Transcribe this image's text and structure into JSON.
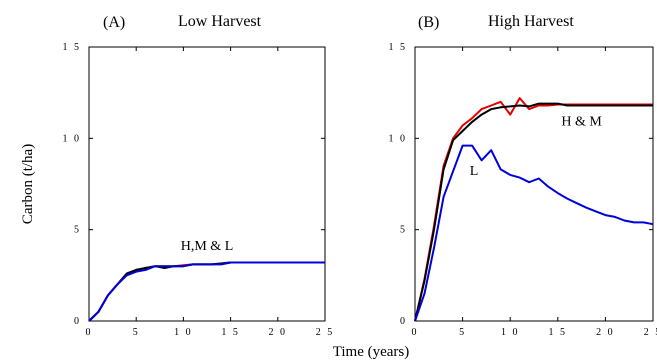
{
  "xlabel": "Time (years)",
  "ylabel": "Carbon (t/ha)",
  "chart_data": [
    {
      "type": "line",
      "panel_label": "(A)",
      "title": "Low Harvest",
      "xlim": [
        0,
        25
      ],
      "ylim": [
        0,
        15
      ],
      "xticks": [
        0,
        5,
        10,
        15,
        20,
        25
      ],
      "xtick_labels": [
        "0",
        "5",
        "1 0",
        "1 5",
        "2 0",
        "2 5"
      ],
      "yticks": [
        0,
        5,
        10,
        15
      ],
      "ytick_labels": [
        "0",
        "5",
        "1 0",
        "1 5"
      ],
      "grid": false,
      "annotations": [
        {
          "text": "H,M & L",
          "x": 12.5,
          "y": 3.9
        }
      ],
      "series": [
        {
          "color": "#e00000",
          "x": [
            0,
            1,
            2,
            3,
            4,
            5,
            6,
            7,
            8,
            9,
            10,
            11,
            12,
            13,
            14,
            15,
            16,
            17,
            18,
            19,
            20,
            21,
            22,
            23,
            24,
            25
          ],
          "y": [
            0,
            0.5,
            1.4,
            2.0,
            2.6,
            2.8,
            2.9,
            3.0,
            3.0,
            3.0,
            3.05,
            3.1,
            3.1,
            3.1,
            3.15,
            3.2,
            3.2,
            3.2,
            3.2,
            3.2,
            3.2,
            3.2,
            3.2,
            3.2,
            3.2,
            3.2
          ]
        },
        {
          "color": "#000000",
          "x": [
            0,
            1,
            2,
            3,
            4,
            5,
            6,
            7,
            8,
            9,
            10,
            11,
            12,
            13,
            14,
            15,
            16,
            17,
            18,
            19,
            20,
            21,
            22,
            23,
            24,
            25
          ],
          "y": [
            0,
            0.5,
            1.4,
            2.0,
            2.6,
            2.8,
            2.9,
            3.0,
            2.9,
            3.0,
            3.0,
            3.1,
            3.1,
            3.1,
            3.15,
            3.2,
            3.2,
            3.2,
            3.2,
            3.2,
            3.2,
            3.2,
            3.2,
            3.2,
            3.2,
            3.2
          ]
        },
        {
          "color": "#0000dd",
          "x": [
            0,
            1,
            2,
            3,
            4,
            5,
            6,
            7,
            8,
            9,
            10,
            11,
            12,
            13,
            14,
            15,
            16,
            17,
            18,
            19,
            20,
            21,
            22,
            23,
            24,
            25
          ],
          "y": [
            0,
            0.5,
            1.4,
            2.0,
            2.5,
            2.7,
            2.8,
            3.0,
            3.0,
            3.0,
            3.0,
            3.1,
            3.1,
            3.1,
            3.1,
            3.2,
            3.2,
            3.2,
            3.2,
            3.2,
            3.2,
            3.2,
            3.2,
            3.2,
            3.2,
            3.2
          ]
        }
      ]
    },
    {
      "type": "line",
      "panel_label": "(B)",
      "title": "High Harvest",
      "xlim": [
        0,
        25
      ],
      "ylim": [
        0,
        15
      ],
      "xticks": [
        0,
        5,
        10,
        15,
        20,
        25
      ],
      "xtick_labels": [
        "0",
        "5",
        "1 0",
        "1 5",
        "2 0",
        "2 5"
      ],
      "yticks": [
        0,
        5,
        10,
        15
      ],
      "ytick_labels": [
        "0",
        "5",
        "1 0",
        "1 5"
      ],
      "grid": false,
      "annotations": [
        {
          "text": "H & M",
          "x": 17.5,
          "y": 10.7
        },
        {
          "text": "L",
          "x": 6.2,
          "y": 8.0
        }
      ],
      "series": [
        {
          "color": "#e00000",
          "x": [
            0,
            1,
            2,
            3,
            4,
            5,
            6,
            7,
            8,
            9,
            10,
            11,
            12,
            13,
            14,
            15,
            16,
            17,
            18,
            19,
            20,
            21,
            22,
            23,
            24,
            25
          ],
          "y": [
            0,
            2.3,
            5.2,
            8.5,
            10.0,
            10.7,
            11.1,
            11.6,
            11.8,
            12.0,
            11.3,
            12.2,
            11.6,
            11.8,
            11.8,
            11.85,
            11.85,
            11.85,
            11.85,
            11.85,
            11.85,
            11.85,
            11.85,
            11.85,
            11.85,
            11.85
          ]
        },
        {
          "color": "#000000",
          "x": [
            0,
            1,
            2,
            3,
            4,
            5,
            6,
            7,
            8,
            9,
            10,
            11,
            12,
            13,
            14,
            15,
            16,
            17,
            18,
            19,
            20,
            21,
            22,
            23,
            24,
            25
          ],
          "y": [
            0,
            2.2,
            5.0,
            8.3,
            9.9,
            10.4,
            10.9,
            11.3,
            11.6,
            11.7,
            11.75,
            11.8,
            11.75,
            11.9,
            11.9,
            11.9,
            11.8,
            11.8,
            11.8,
            11.8,
            11.8,
            11.8,
            11.8,
            11.8,
            11.8,
            11.8
          ]
        },
        {
          "color": "#0000dd",
          "x": [
            0,
            1,
            2,
            3,
            4,
            5,
            6,
            7,
            8,
            9,
            10,
            11,
            12,
            13,
            14,
            15,
            16,
            17,
            18,
            19,
            20,
            21,
            22,
            23,
            24,
            25
          ],
          "y": [
            0,
            1.5,
            4.0,
            6.8,
            8.2,
            9.6,
            9.6,
            8.8,
            9.35,
            8.3,
            8.0,
            7.85,
            7.6,
            7.8,
            7.35,
            7.0,
            6.7,
            6.45,
            6.2,
            6.0,
            5.8,
            5.7,
            5.5,
            5.4,
            5.4,
            5.3
          ]
        }
      ]
    }
  ]
}
